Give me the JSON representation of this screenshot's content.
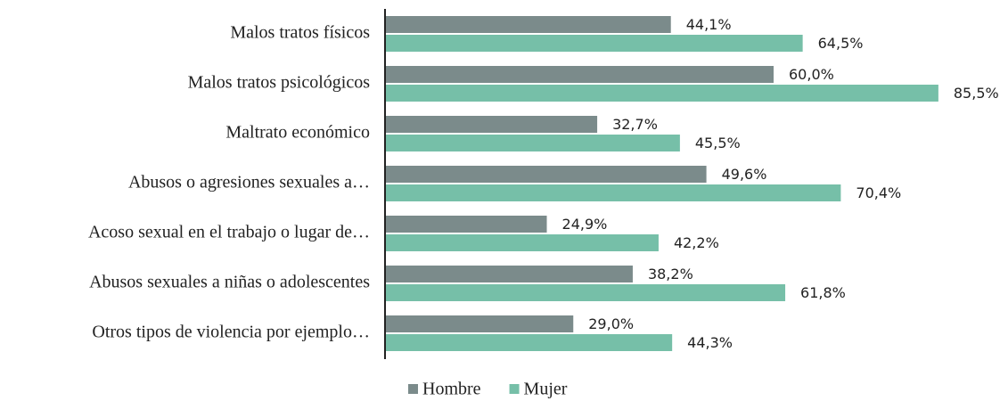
{
  "chart_data": {
    "type": "bar",
    "orientation": "horizontal",
    "categories": [
      "Malos tratos físicos",
      "Malos tratos psicológicos",
      "Maltrato económico",
      "Abusos o agresiones sexuales a…",
      "Acoso sexual en el trabajo o lugar de…",
      "Abusos sexuales a niñas o adolescentes",
      "Otros tipos de violencia por ejemplo…"
    ],
    "series": [
      {
        "name": "Hombre",
        "color": "#7b8b8b",
        "values": [
          44.1,
          60.0,
          32.7,
          49.6,
          24.9,
          38.2,
          29.0
        ],
        "value_labels": [
          "44,1%",
          "60,0%",
          "32,7%",
          "49,6%",
          "24,9%",
          "38,2%",
          "29,0%"
        ]
      },
      {
        "name": "Mujer",
        "color": "#76bfa8",
        "values": [
          64.5,
          85.5,
          45.5,
          70.4,
          42.2,
          61.8,
          44.3
        ],
        "value_labels": [
          "64,5%",
          "85,5%",
          "45,5%",
          "70,4%",
          "42,2%",
          "61,8%",
          "44,3%"
        ]
      }
    ],
    "legend": "bottom"
  }
}
